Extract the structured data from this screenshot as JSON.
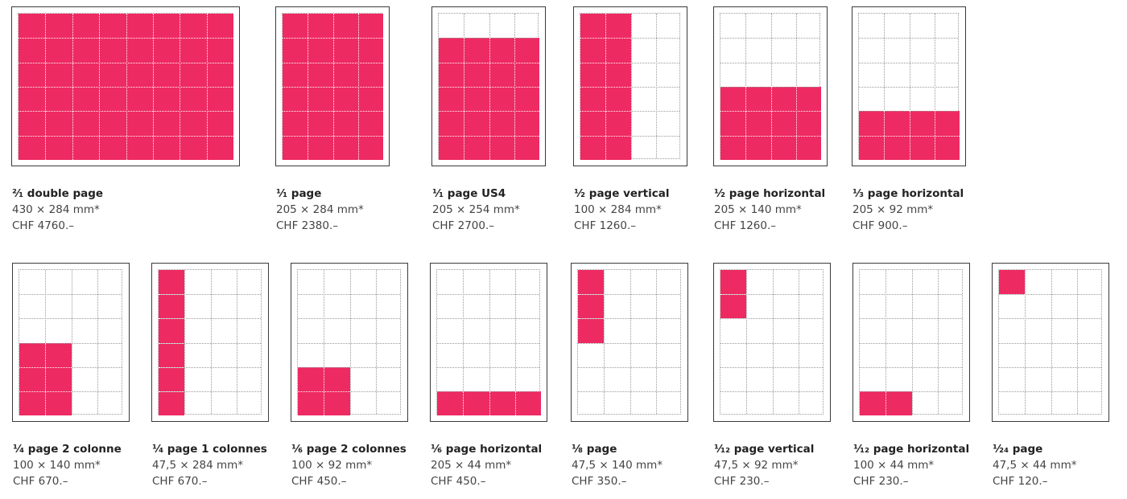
{
  "colors": {
    "fill": "#ee2a62",
    "frame": "#3a3a3a",
    "grid": "#9a9a9a",
    "text": "#333333"
  },
  "formats": [
    {
      "id": "double-page",
      "title": "²⁄₁ double page",
      "size": "430 × 284 mm*",
      "price": "CHF 4760.–",
      "cols": 8,
      "rows": 6,
      "fill": [
        0,
        0,
        8,
        6
      ]
    },
    {
      "id": "full-page",
      "title": "¹⁄₁ page",
      "size": "205 × 284 mm*",
      "price": "CHF 2380.–",
      "cols": 4,
      "rows": 6,
      "fill": [
        0,
        0,
        4,
        6
      ]
    },
    {
      "id": "full-page-us4",
      "title": "¹⁄₁ page US4",
      "size": "205 × 254 mm*",
      "price": "CHF 2700.–",
      "cols": 4,
      "rows": 6,
      "fill": [
        0,
        1,
        4,
        5
      ]
    },
    {
      "id": "half-page-vertical",
      "title": "¹⁄₂ page vertical",
      "size": "100 × 284 mm*",
      "price": "CHF 1260.–",
      "cols": 4,
      "rows": 6,
      "fill": [
        0,
        0,
        2,
        6
      ]
    },
    {
      "id": "half-page-horizontal",
      "title": "¹⁄₂ page horizontal",
      "size": "205 × 140 mm*",
      "price": "CHF 1260.–",
      "cols": 4,
      "rows": 6,
      "fill": [
        0,
        3,
        4,
        3
      ]
    },
    {
      "id": "third-page-horizontal",
      "title": "¹⁄₃ page horizontal",
      "size": "205 × 92 mm*",
      "price": "CHF 900.–",
      "cols": 4,
      "rows": 6,
      "fill": [
        0,
        4,
        4,
        2
      ]
    },
    {
      "id": "quarter-page-2-col",
      "title": "¹⁄₄ page 2 colonne",
      "size": "100 × 140 mm*",
      "price": "CHF 670.–",
      "cols": 4,
      "rows": 6,
      "fill": [
        0,
        3,
        2,
        3
      ]
    },
    {
      "id": "quarter-page-1-col",
      "title": "¹⁄₄ page 1 colonnes",
      "size": "47,5 × 284 mm*",
      "price": "CHF 670.–",
      "cols": 4,
      "rows": 6,
      "fill": [
        0,
        0,
        1,
        6
      ]
    },
    {
      "id": "sixth-page-2-col",
      "title": "¹⁄₆ page 2 colonnes",
      "size": "100 × 92 mm*",
      "price": "CHF 450.–",
      "cols": 4,
      "rows": 6,
      "fill": [
        0,
        4,
        2,
        2
      ]
    },
    {
      "id": "sixth-page-horizontal",
      "title": "¹⁄₆ page horizontal",
      "size": "205 × 44 mm*",
      "price": "CHF 450.–",
      "cols": 4,
      "rows": 6,
      "fill": [
        0,
        5,
        4,
        1
      ]
    },
    {
      "id": "eighth-page",
      "title": "¹⁄₈ page",
      "size": "47,5 × 140 mm*",
      "price": "CHF 350.–",
      "cols": 4,
      "rows": 6,
      "fill": [
        0,
        0,
        1,
        3
      ]
    },
    {
      "id": "twelfth-page-vertical",
      "title": "¹⁄₁₂ page vertical",
      "size": "47,5 × 92 mm*",
      "price": "CHF 230.–",
      "cols": 4,
      "rows": 6,
      "fill": [
        0,
        0,
        1,
        2
      ]
    },
    {
      "id": "twelfth-page-horizontal",
      "title": "¹⁄₁₂ page horizontal",
      "size": "100 × 44 mm*",
      "price": "CHF 230.–",
      "cols": 4,
      "rows": 6,
      "fill": [
        0,
        5,
        2,
        1
      ]
    },
    {
      "id": "twentyfourth-page",
      "title": "¹⁄₂₄ page",
      "size": "47,5 × 44 mm*",
      "price": "CHF 120.–",
      "cols": 4,
      "rows": 6,
      "fill": [
        0,
        0,
        1,
        1
      ]
    }
  ]
}
